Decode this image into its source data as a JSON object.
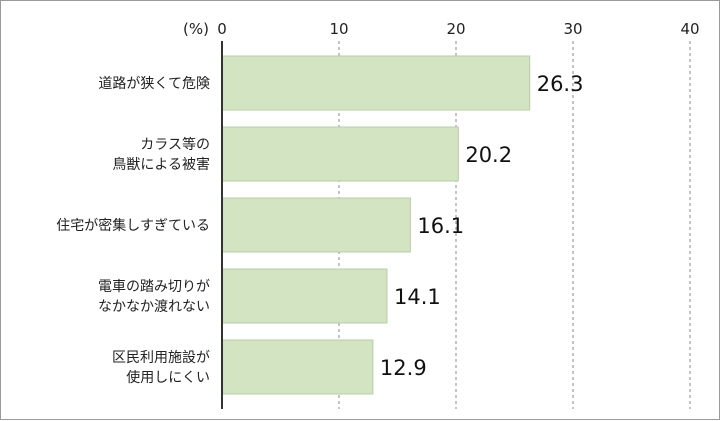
{
  "chart_data": {
    "type": "bar",
    "orientation": "horizontal",
    "unit_label": "(%)",
    "categories": [
      [
        "道路が狭くて危険"
      ],
      [
        "カラス等の",
        "鳥獣による被害"
      ],
      [
        "住宅が密集しすぎている"
      ],
      [
        "電車の踏み切りが",
        "なかなか渡れない"
      ],
      [
        "区民利用施設が",
        "使用しにくい"
      ]
    ],
    "values": [
      26.3,
      20.2,
      16.1,
      14.1,
      12.9
    ],
    "value_labels": [
      "26.3",
      "20.2",
      "16.1",
      "14.1",
      "12.9"
    ],
    "xlim": [
      0,
      40
    ],
    "ticks": [
      "0",
      "10",
      "20",
      "30",
      "40"
    ],
    "grid": true,
    "colors": {
      "bar": "#d3e4c3",
      "bar_edge": "#b9cca7",
      "axis": "#333333",
      "grid": "#8a8a8a"
    }
  }
}
